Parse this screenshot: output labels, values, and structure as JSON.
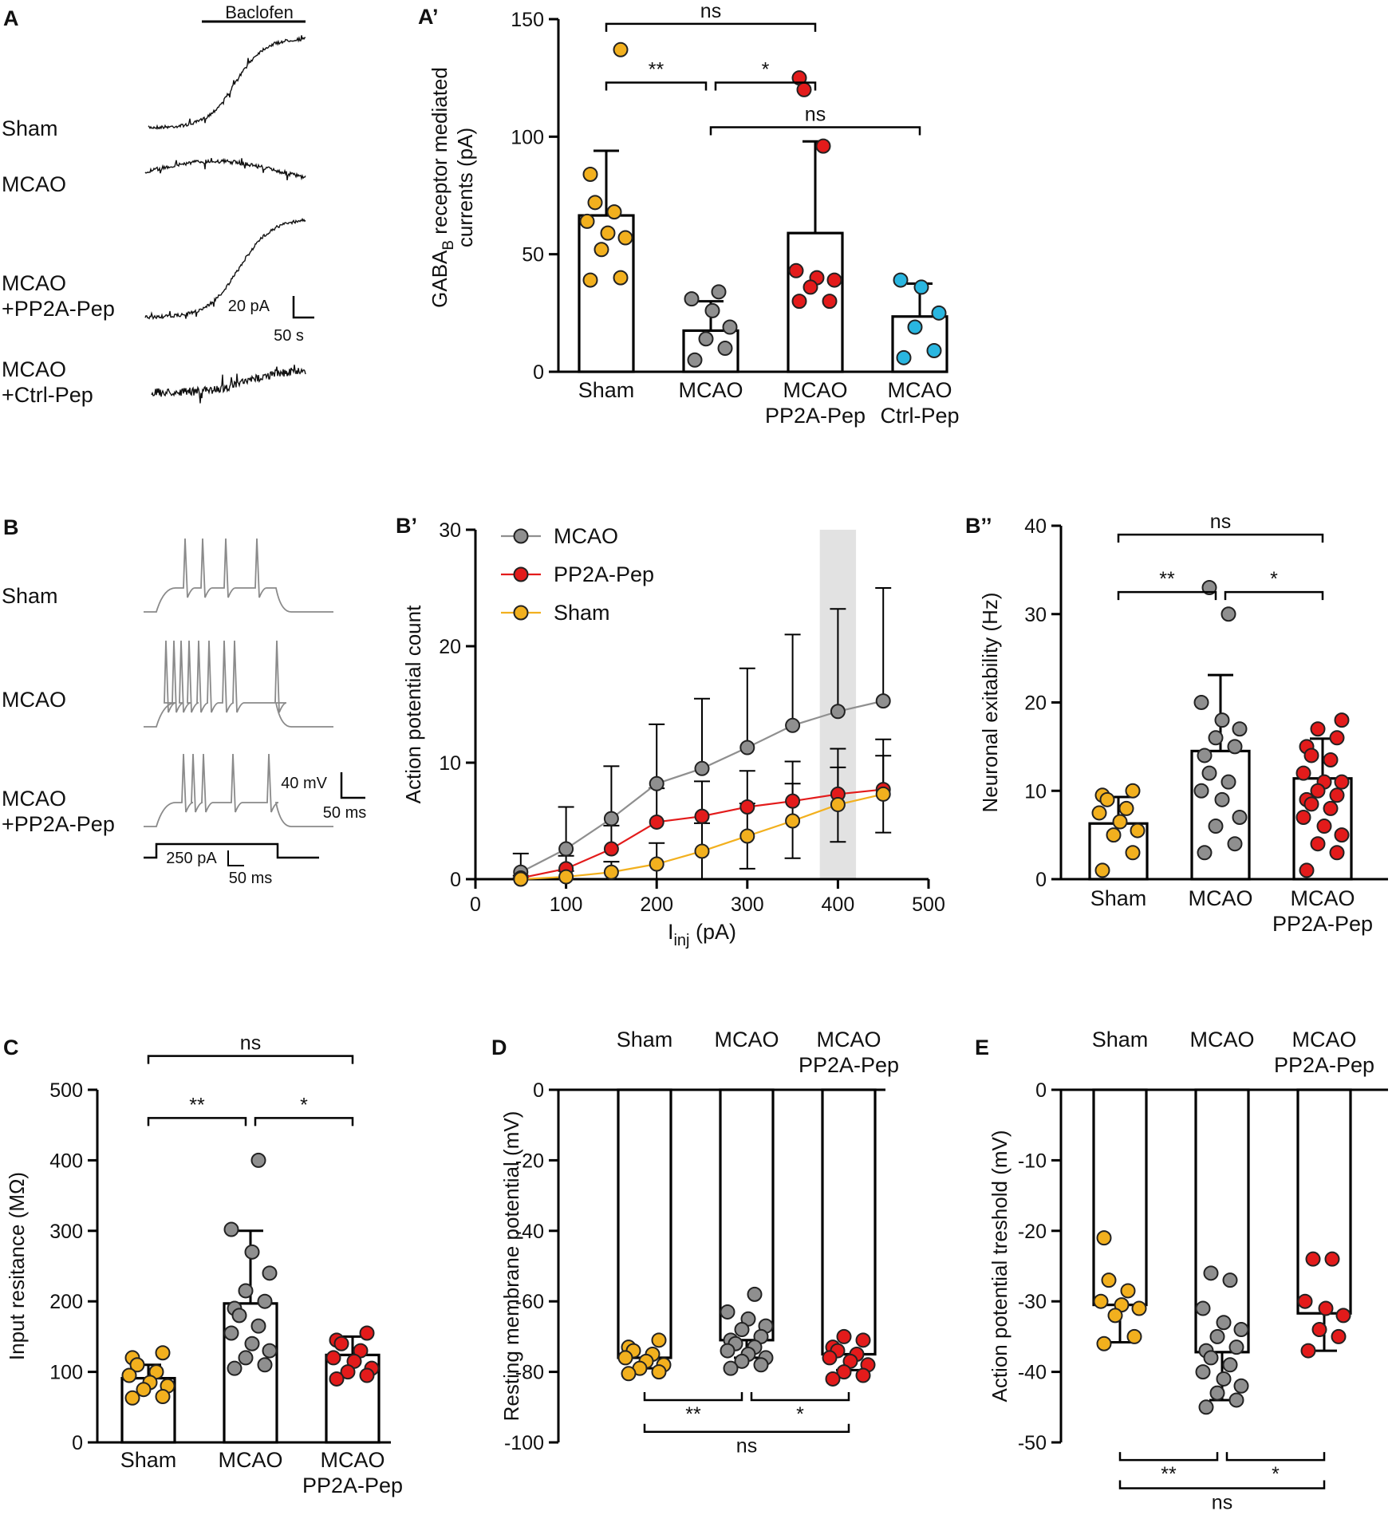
{
  "colors": {
    "sham": "#f2b01e",
    "mcao": "#8f8f8f",
    "pp2a": "#e31b1b",
    "ctrl": "#29b6e0",
    "axis": "#000000",
    "trace": "#8a8a8a",
    "highlight": "#e2e2e2"
  },
  "panelA": {
    "letter": "A",
    "bar_label": "Baclofen",
    "traces": [
      "Sham",
      "MCAO",
      "MCAO",
      "+PP2A-Pep",
      "MCAO",
      "+Ctrl-Pep"
    ],
    "scale_y": "20 pA",
    "scale_x": "50 s"
  },
  "panelB": {
    "letter": "B",
    "traces": [
      "Sham",
      "MCAO",
      "MCAO",
      "+PP2A-Pep"
    ],
    "scale_y": "40 mV",
    "scale_x": "50 ms",
    "stim_label": "250 pA",
    "stim_scale": "50 ms"
  },
  "chart_data": [
    {
      "id": "A'",
      "type": "bar",
      "letter": "A’",
      "ylabel": "GABAB receptor mediated currents (pA)",
      "ylabel_parts": [
        "GABA",
        "B",
        " receptor mediated",
        "currents (pA)"
      ],
      "ylim": [
        0,
        150
      ],
      "yticks": [
        0,
        50,
        100,
        150
      ],
      "categories": [
        [
          "Sham"
        ],
        [
          "MCAO"
        ],
        [
          "MCAO",
          "PP2A-Pep"
        ],
        [
          "MCAO",
          "Ctrl-Pep"
        ]
      ],
      "means": [
        66.5,
        17.5,
        59,
        23.5
      ],
      "sd": [
        27.5,
        12.5,
        39,
        14
      ],
      "points": [
        [
          137,
          84,
          72,
          68,
          64,
          59,
          57,
          52,
          40,
          39
        ],
        [
          34,
          31,
          26,
          19,
          14,
          10,
          5
        ],
        [
          125,
          120,
          96,
          43,
          40,
          39,
          36,
          30,
          30
        ],
        [
          39,
          36,
          25,
          19,
          9,
          6
        ]
      ],
      "colors": [
        "sham",
        "mcao",
        "pp2a",
        "ctrl"
      ],
      "sig": [
        {
          "from": 0,
          "to": 2,
          "y": 148,
          "label": "ns"
        },
        {
          "from": 0,
          "to": 1,
          "y": 123,
          "label": "**"
        },
        {
          "from": 1,
          "to": 2,
          "y": 123,
          "label": "*"
        },
        {
          "from": 1,
          "to": 3,
          "y": 104,
          "label": "ns"
        }
      ]
    },
    {
      "id": "B'",
      "type": "line",
      "letter": "B’",
      "xlabel": "I",
      "xlabel_sub": "inj",
      "xlabel_rest": " (pA)",
      "ylabel": "Action potential count",
      "xlim": [
        0,
        500
      ],
      "ylim": [
        0,
        30
      ],
      "xticks": [
        0,
        100,
        200,
        300,
        400,
        500
      ],
      "yticks": [
        0,
        10,
        20,
        30
      ],
      "highlight_x": [
        380,
        420
      ],
      "legend_position": "top-left",
      "series": [
        {
          "name": "MCAO",
          "color": "mcao",
          "x": [
            50,
            100,
            150,
            200,
            250,
            300,
            350,
            400,
            450
          ],
          "y": [
            0.6,
            2.6,
            5.2,
            8.2,
            9.5,
            11.3,
            13.2,
            14.4,
            15.3
          ],
          "err": [
            1.6,
            3.6,
            4.5,
            5.1,
            6.0,
            6.8,
            7.8,
            8.8,
            9.7
          ]
        },
        {
          "name": "PP2A-Pep",
          "color": "pp2a",
          "x": [
            50,
            100,
            150,
            200,
            250,
            300,
            350,
            400,
            450
          ],
          "y": [
            0.1,
            0.9,
            2.6,
            4.9,
            5.4,
            6.2,
            6.7,
            7.3,
            7.7
          ],
          "err": [
            0.2,
            1.1,
            2.0,
            2.9,
            3.0,
            3.1,
            3.4,
            3.9,
            4.3
          ]
        },
        {
          "name": "Sham",
          "color": "sham",
          "x": [
            50,
            100,
            150,
            200,
            250,
            300,
            350,
            400,
            450
          ],
          "y": [
            0,
            0.2,
            0.6,
            1.3,
            2.4,
            3.7,
            5.0,
            6.4,
            7.3
          ],
          "err": [
            0.1,
            0.5,
            0.9,
            1.8,
            2.4,
            2.8,
            3.2,
            3.2,
            3.3
          ]
        }
      ]
    },
    {
      "id": "B''",
      "type": "bar",
      "letter": "B’’",
      "ylabel": "Neuronal exitability (Hz)",
      "ylim": [
        0,
        40
      ],
      "yticks": [
        0,
        10,
        20,
        30,
        40
      ],
      "categories": [
        [
          "Sham"
        ],
        [
          "MCAO"
        ],
        [
          "MCAO",
          "PP2A-Pep"
        ]
      ],
      "means": [
        6.3,
        14.5,
        11.4
      ],
      "sd": [
        3.0,
        8.6,
        4.5
      ],
      "points": [
        [
          10,
          9.5,
          9,
          8,
          7.5,
          6.5,
          5.5,
          5,
          3,
          1
        ],
        [
          33,
          30,
          20,
          18,
          17,
          16,
          15,
          14,
          12,
          11,
          10,
          9,
          7,
          6,
          4,
          3
        ],
        [
          18,
          17,
          16,
          15,
          14,
          13.5,
          12,
          11,
          11,
          10,
          9.5,
          9,
          8.5,
          8,
          7,
          6,
          5,
          4,
          3,
          1
        ]
      ],
      "colors": [
        "sham",
        "mcao",
        "pp2a"
      ],
      "sig": [
        {
          "from": 0,
          "to": 2,
          "y": 39,
          "label": "ns"
        },
        {
          "from": 0,
          "to": 1,
          "y": 32.5,
          "label": "**"
        },
        {
          "from": 1,
          "to": 2,
          "y": 32.5,
          "label": "*"
        }
      ]
    },
    {
      "id": "C",
      "type": "bar",
      "letter": "C",
      "ylabel": "Input resitance (MΩ)",
      "ylim": [
        0,
        500
      ],
      "yticks": [
        0,
        100,
        200,
        300,
        400,
        500
      ],
      "categories": [
        [
          "Sham"
        ],
        [
          "MCAO"
        ],
        [
          "MCAO",
          "PP2A-Pep"
        ]
      ],
      "means": [
        91,
        197,
        124
      ],
      "sd": [
        19,
        103,
        26
      ],
      "points": [
        [
          127,
          120,
          110,
          100,
          95,
          85,
          80,
          75,
          65,
          63
        ],
        [
          400,
          302,
          270,
          240,
          215,
          200,
          190,
          180,
          165,
          155,
          140,
          130,
          120,
          110,
          105
        ],
        [
          155,
          145,
          140,
          130,
          120,
          115,
          105,
          100,
          95,
          90
        ]
      ],
      "colors": [
        "sham",
        "mcao",
        "pp2a"
      ],
      "sig": [
        {
          "from": 0,
          "to": 2,
          "y": 548,
          "label": "ns"
        },
        {
          "from": 0,
          "to": 1,
          "y": 460,
          "label": "**"
        },
        {
          "from": 1,
          "to": 2,
          "y": 460,
          "label": "*"
        }
      ]
    },
    {
      "id": "D",
      "type": "bar",
      "letter": "D",
      "ylabel": "Resting membrane potential (mV)",
      "ylim": [
        -100,
        0
      ],
      "yticks": [
        0,
        -20,
        -40,
        -60,
        -80,
        -100
      ],
      "categories": [
        [
          "Sham"
        ],
        [
          "MCAO"
        ],
        [
          "MCAO",
          "PP2A-Pep"
        ]
      ],
      "means": [
        -76,
        -71,
        -75
      ],
      "sd": [
        3,
        5,
        4.5
      ],
      "points": [
        [
          -71,
          -73,
          -74,
          -75,
          -76,
          -77,
          -78,
          -79,
          -80,
          -80.5
        ],
        [
          -58,
          -63,
          -65,
          -67,
          -68,
          -70,
          -71,
          -72,
          -73,
          -74,
          -75,
          -76,
          -77,
          -78,
          -79
        ],
        [
          -70,
          -71,
          -73,
          -74,
          -75,
          -76,
          -77,
          -78,
          -80,
          -81,
          -82
        ]
      ],
      "colors": [
        "sham",
        "mcao",
        "pp2a"
      ],
      "sig": [
        {
          "from": 0,
          "to": 1,
          "y": -88,
          "label": "**"
        },
        {
          "from": 1,
          "to": 2,
          "y": -88,
          "label": "*"
        },
        {
          "from": 0,
          "to": 2,
          "y": -97,
          "label": "ns"
        }
      ]
    },
    {
      "id": "E",
      "type": "bar",
      "letter": "E",
      "ylabel": "Action potential treshold (mV)",
      "ylim": [
        -50,
        0
      ],
      "yticks": [
        0,
        -10,
        -20,
        -30,
        -40,
        -50
      ],
      "categories": [
        [
          "Sham"
        ],
        [
          "MCAO"
        ],
        [
          "MCAO",
          "PP2A-Pep"
        ]
      ],
      "means": [
        -30.5,
        -37.2,
        -31.7
      ],
      "sd": [
        5.3,
        6.8,
        5.3
      ],
      "points": [
        [
          -21,
          -27,
          -28.5,
          -30,
          -30.5,
          -31,
          -32,
          -35,
          -36
        ],
        [
          -26,
          -27,
          -31,
          -33,
          -34,
          -35,
          -36.5,
          -37,
          -38,
          -39,
          -40,
          -41,
          -42,
          -43,
          -44,
          -45
        ],
        [
          -24,
          -24,
          -30,
          -31,
          -32,
          -34,
          -35,
          -37
        ]
      ],
      "colors": [
        "sham",
        "mcao",
        "pp2a"
      ],
      "sig": [
        {
          "from": 0,
          "to": 1,
          "y": -52.5,
          "label": "**"
        },
        {
          "from": 1,
          "to": 2,
          "y": -52.5,
          "label": "*"
        },
        {
          "from": 0,
          "to": 2,
          "y": -56.5,
          "label": "ns"
        }
      ]
    }
  ]
}
